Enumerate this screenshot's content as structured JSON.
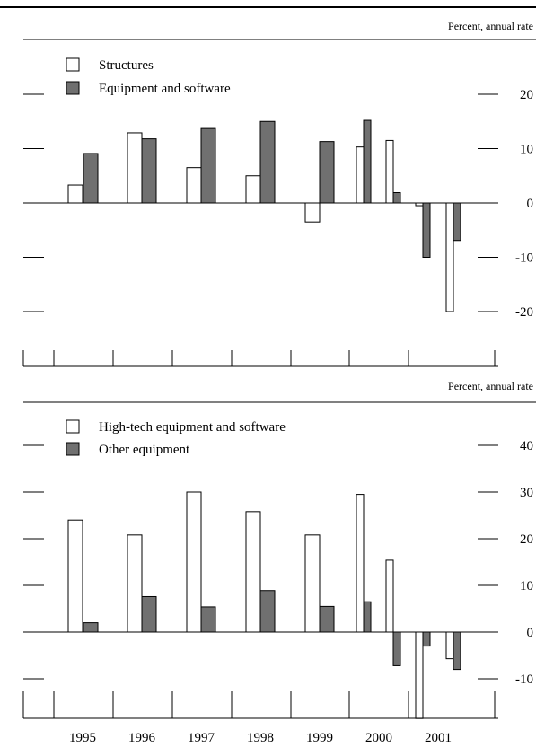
{
  "chart_data": [
    {
      "type": "bar",
      "units_label": "Percent, annual rate",
      "categories": [
        "1995",
        "1996",
        "1997",
        "1998",
        "1999",
        "2000",
        "2001 Q1",
        "2001 Q2"
      ],
      "series": [
        {
          "name": "Structures",
          "color": "#ffffff",
          "values": [
            3.3,
            12.9,
            6.5,
            5.0,
            -3.5,
            10.3,
            11.5,
            -0.5
          ]
        },
        {
          "name": "Equipment and software",
          "color": "#707070",
          "values": [
            9.1,
            11.8,
            13.7,
            15.0,
            11.3,
            15.2,
            1.9,
            -10.0
          ]
        }
      ],
      "extra_bars": [
        {
          "category_index": 7,
          "series": "Structures",
          "value": -20.0
        },
        {
          "category_index": 7,
          "series": "Equipment and software",
          "value": -6.9
        }
      ],
      "ylim": [
        -30,
        25
      ],
      "yticks": [
        20,
        10,
        0,
        -10,
        -20
      ],
      "legend": "top-left",
      "grid": false
    },
    {
      "type": "bar",
      "units_label": "Percent, annual rate",
      "categories": [
        "1995",
        "1996",
        "1997",
        "1998",
        "1999",
        "2000",
        "2001 Q1",
        "2001 Q2"
      ],
      "series": [
        {
          "name": "High-tech equipment and software",
          "color": "#ffffff",
          "values": [
            24.0,
            20.8,
            30.0,
            25.8,
            20.8,
            29.5,
            15.4,
            -18.5
          ]
        },
        {
          "name": "Other equipment",
          "color": "#707070",
          "values": [
            2.0,
            7.6,
            5.4,
            8.9,
            5.5,
            6.5,
            -7.2,
            -3.0
          ]
        }
      ],
      "extra_bars": [
        {
          "category_index": 7,
          "series": "High-tech equipment and software",
          "value": -5.7
        },
        {
          "category_index": 7,
          "series": "Other equipment",
          "value": -8.0
        }
      ],
      "ylim": [
        -19,
        45
      ],
      "yticks": [
        40,
        30,
        20,
        10,
        0,
        -10
      ],
      "legend": "top-left",
      "grid": false
    }
  ],
  "x_axis_labels": [
    "1995",
    "1996",
    "1997",
    "1998",
    "1999",
    "2000",
    "2001"
  ]
}
